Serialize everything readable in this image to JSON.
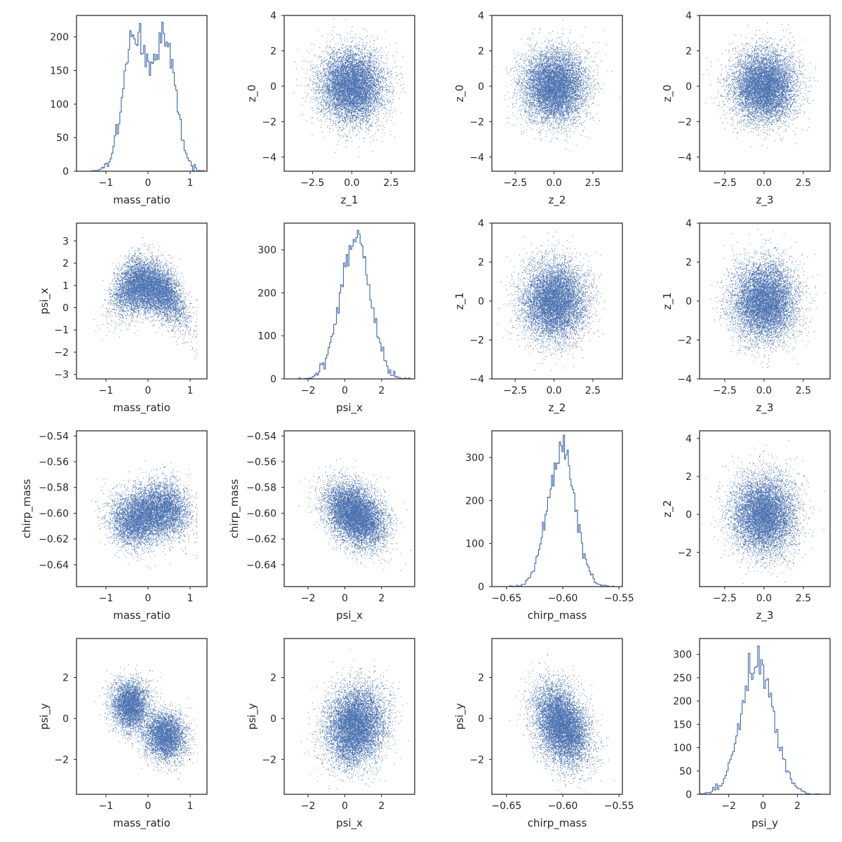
{
  "series_color": "#4c72b0",
  "chart_data": [
    {
      "type": "histogram",
      "row": 0,
      "col": 0,
      "xlabel": "mass_ratio",
      "ylabel": "",
      "xlim": [
        -1.7,
        1.4
      ],
      "ylim": [
        0,
        232
      ],
      "xticks": [
        -1,
        0,
        1
      ],
      "yticks": [
        0,
        50,
        100,
        150,
        200
      ],
      "dist": {
        "kind": "bimodal",
        "mean": 0.0,
        "sd": 0.45,
        "n": 8000,
        "peak": 222,
        "bins": 80
      }
    },
    {
      "type": "scatter",
      "row": 0,
      "col": 1,
      "xlabel": "z_1",
      "ylabel": "z_0",
      "xlim": [
        -4.3,
        4.0
      ],
      "ylim": [
        -4.8,
        4.0
      ],
      "xticks": [
        -2.5,
        0.0,
        2.5
      ],
      "yticks": [
        -4,
        -2,
        0,
        2,
        4
      ],
      "dist": {
        "kind": "gauss",
        "mx": 0,
        "sx": 1,
        "my": 0,
        "sy": 1,
        "n": 8000
      }
    },
    {
      "type": "scatter",
      "row": 0,
      "col": 2,
      "xlabel": "z_2",
      "ylabel": "z_0",
      "xlim": [
        -4.0,
        4.4
      ],
      "ylim": [
        -4.8,
        4.0
      ],
      "xticks": [
        -2.5,
        0.0,
        2.5
      ],
      "yticks": [
        -4,
        -2,
        0,
        2,
        4
      ],
      "dist": {
        "kind": "gauss",
        "mx": 0,
        "sx": 1,
        "my": 0,
        "sy": 1,
        "n": 8000
      }
    },
    {
      "type": "scatter",
      "row": 0,
      "col": 3,
      "xlabel": "z_3",
      "ylabel": "z_0",
      "xlim": [
        -4.1,
        4.2
      ],
      "ylim": [
        -4.8,
        4.0
      ],
      "xticks": [
        -2.5,
        0.0,
        2.5
      ],
      "yticks": [
        -4,
        -2,
        0,
        2,
        4
      ],
      "dist": {
        "kind": "gauss",
        "mx": 0,
        "sx": 1,
        "my": 0,
        "sy": 1,
        "n": 8000
      }
    },
    {
      "type": "scatter",
      "row": 1,
      "col": 0,
      "xlabel": "mass_ratio",
      "ylabel": "psi_x",
      "xlim": [
        -1.7,
        1.4
      ],
      "ylim": [
        -3.2,
        3.8
      ],
      "xticks": [
        -1,
        0,
        1
      ],
      "yticks": [
        -3,
        -2,
        -1,
        0,
        1,
        2,
        3
      ],
      "dist": {
        "kind": "arch",
        "n": 8000
      }
    },
    {
      "type": "histogram",
      "row": 1,
      "col": 1,
      "xlabel": "psi_x",
      "ylabel": "",
      "xlim": [
        -3.3,
        3.8
      ],
      "ylim": [
        0,
        362
      ],
      "xticks": [
        -2,
        0,
        2
      ],
      "yticks": [
        0,
        100,
        200,
        300
      ],
      "dist": {
        "kind": "gauss",
        "mean": 0.55,
        "sd": 0.8,
        "n": 8000,
        "peak": 345,
        "bins": 80
      }
    },
    {
      "type": "scatter",
      "row": 1,
      "col": 2,
      "xlabel": "z_2",
      "ylabel": "z_1",
      "xlim": [
        -4.0,
        4.4
      ],
      "ylim": [
        -4.0,
        4.0
      ],
      "xticks": [
        -2.5,
        0.0,
        2.5
      ],
      "yticks": [
        -4,
        -2,
        0,
        2,
        4
      ],
      "dist": {
        "kind": "gauss",
        "mx": 0,
        "sx": 1,
        "my": 0,
        "sy": 1,
        "n": 8000
      }
    },
    {
      "type": "scatter",
      "row": 1,
      "col": 3,
      "xlabel": "z_3",
      "ylabel": "z_1",
      "xlim": [
        -4.1,
        4.2
      ],
      "ylim": [
        -4.0,
        4.0
      ],
      "xticks": [
        -2.5,
        0.0,
        2.5
      ],
      "yticks": [
        -4,
        -2,
        0,
        2,
        4
      ],
      "dist": {
        "kind": "gauss",
        "mx": 0,
        "sx": 1,
        "my": 0,
        "sy": 1,
        "n": 8000
      }
    },
    {
      "type": "scatter",
      "row": 2,
      "col": 0,
      "xlabel": "mass_ratio",
      "ylabel": "chirp_mass",
      "xlim": [
        -1.7,
        1.4
      ],
      "ylim": [
        -0.657,
        -0.536
      ],
      "xticks": [
        -1,
        0,
        1
      ],
      "yticks": [
        -0.64,
        -0.62,
        -0.6,
        -0.58,
        -0.56,
        -0.54
      ],
      "dist": {
        "kind": "band",
        "n": 8000
      }
    },
    {
      "type": "scatter",
      "row": 2,
      "col": 1,
      "xlabel": "psi_x",
      "ylabel": "chirp_mass",
      "xlim": [
        -3.3,
        3.8
      ],
      "ylim": [
        -0.657,
        -0.536
      ],
      "xticks": [
        -2,
        0,
        2
      ],
      "yticks": [
        -0.64,
        -0.62,
        -0.6,
        -0.58,
        -0.56,
        -0.54
      ],
      "dist": {
        "kind": "corr",
        "mx": 0.55,
        "sx": 0.8,
        "my": -0.601,
        "sy": 0.012,
        "rho": -0.35,
        "n": 8000
      }
    },
    {
      "type": "histogram",
      "row": 2,
      "col": 2,
      "xlabel": "chirp_mass",
      "ylabel": "",
      "xlim": [
        -0.663,
        -0.547
      ],
      "ylim": [
        0,
        362
      ],
      "xticks": [
        -0.65,
        -0.6,
        -0.55
      ],
      "yticks": [
        0,
        100,
        200,
        300
      ],
      "dist": {
        "kind": "gauss",
        "mean": -0.601,
        "sd": 0.012,
        "n": 8000,
        "peak": 352,
        "bins": 80
      }
    },
    {
      "type": "scatter",
      "row": 2,
      "col": 3,
      "xlabel": "z_3",
      "ylabel": "z_2",
      "xlim": [
        -4.1,
        4.2
      ],
      "ylim": [
        -3.8,
        4.4
      ],
      "xticks": [
        -2.5,
        0.0,
        2.5
      ],
      "yticks": [
        -2,
        0,
        2,
        4
      ],
      "dist": {
        "kind": "gauss",
        "mx": 0,
        "sx": 1,
        "my": 0,
        "sy": 1,
        "n": 8000
      }
    },
    {
      "type": "scatter",
      "row": 3,
      "col": 0,
      "xlabel": "mass_ratio",
      "ylabel": "psi_y",
      "xlim": [
        -1.7,
        1.4
      ],
      "ylim": [
        -3.7,
        3.9
      ],
      "xticks": [
        -1,
        0,
        1
      ],
      "yticks": [
        -2,
        0,
        2
      ],
      "dist": {
        "kind": "twoblob",
        "n": 8000
      }
    },
    {
      "type": "scatter",
      "row": 3,
      "col": 1,
      "xlabel": "psi_x",
      "ylabel": "psi_y",
      "xlim": [
        -3.3,
        3.8
      ],
      "ylim": [
        -3.7,
        3.9
      ],
      "xticks": [
        -2,
        0,
        2
      ],
      "yticks": [
        -2,
        0,
        2
      ],
      "dist": {
        "kind": "corr",
        "mx": 0.55,
        "sx": 0.8,
        "my": -0.35,
        "sy": 0.95,
        "rho": 0.15,
        "n": 8000
      }
    },
    {
      "type": "scatter",
      "row": 3,
      "col": 2,
      "xlabel": "chirp_mass",
      "ylabel": "psi_y",
      "xlim": [
        -0.663,
        -0.547
      ],
      "ylim": [
        -3.7,
        3.9
      ],
      "xticks": [
        -0.65,
        -0.6,
        -0.55
      ],
      "yticks": [
        -2,
        0,
        2
      ],
      "dist": {
        "kind": "corr",
        "mx": -0.601,
        "sx": 0.012,
        "my": -0.35,
        "sy": 0.95,
        "rho": -0.35,
        "n": 8000
      }
    },
    {
      "type": "histogram",
      "row": 3,
      "col": 3,
      "xlabel": "psi_y",
      "ylabel": "",
      "xlim": [
        -3.7,
        3.9
      ],
      "ylim": [
        0,
        334
      ],
      "xticks": [
        -2,
        0,
        2
      ],
      "yticks": [
        0,
        50,
        100,
        150,
        200,
        250,
        300
      ],
      "dist": {
        "kind": "gauss",
        "mean": -0.35,
        "sd": 0.95,
        "n": 8000,
        "peak": 318,
        "bins": 80
      }
    }
  ]
}
